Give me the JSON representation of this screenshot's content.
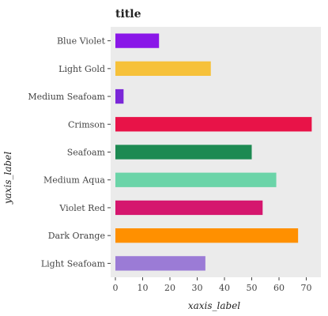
{
  "chart_data": {
    "type": "bar",
    "orientation": "horizontal",
    "title": "title",
    "xlabel": "xaxis_label",
    "ylabel": "yaxis_label",
    "categories": [
      "Light Seafoam",
      "Dark Orange",
      "Violet Red",
      "Medium Aqua",
      "Seafoam",
      "Crimson",
      "Medium Seafoam",
      "Light Gold",
      "Blue Violet"
    ],
    "values": [
      33,
      67,
      54,
      59,
      50,
      72,
      3,
      35,
      16
    ],
    "colors": [
      "#9b7bd6",
      "#ff9000",
      "#d5166e",
      "#6bd4a8",
      "#1d8a52",
      "#e81348",
      "#7b27d8",
      "#f6c13a",
      "#8a17e8"
    ],
    "xlim": [
      0,
      75
    ],
    "xticks": [
      0,
      10,
      20,
      30,
      40,
      50,
      60,
      70
    ],
    "grid": false,
    "background": "#ebebeb"
  }
}
